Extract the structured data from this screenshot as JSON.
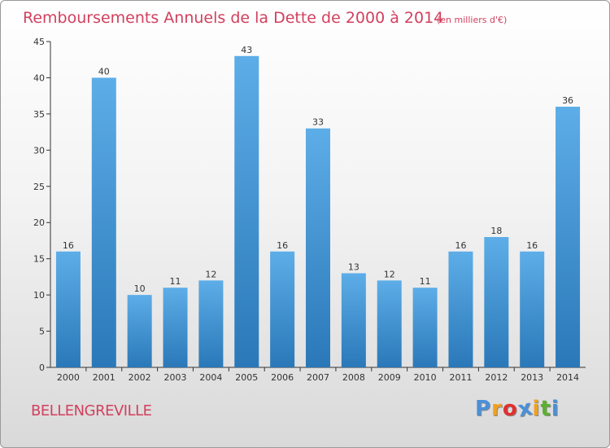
{
  "chart_data": {
    "type": "bar",
    "title": "Remboursements Annuels de la Dette de 2000 à 2014",
    "unit_note": "(en milliers d'€)",
    "categories": [
      "2000",
      "2001",
      "2002",
      "2003",
      "2004",
      "2005",
      "2006",
      "2007",
      "2008",
      "2009",
      "2010",
      "2011",
      "2012",
      "2013",
      "2014"
    ],
    "values": [
      16,
      40,
      10,
      11,
      12,
      43,
      16,
      33,
      13,
      12,
      11,
      16,
      18,
      16,
      36
    ],
    "ylim": [
      0,
      45
    ],
    "yticks": [
      0,
      5,
      10,
      15,
      20,
      25,
      30,
      35,
      40,
      45
    ],
    "grid": false,
    "bar_color_light": "#5dade8",
    "bar_color_dark": "#2a78b8"
  },
  "footer": {
    "commune": "BELLENGREVILLE",
    "logo_text": "Proxiti",
    "logo_colors": [
      "#4a90d9",
      "#f0a020",
      "#e03030",
      "#4a90d9",
      "#f0a020",
      "#5cb030",
      "#4a90d9"
    ]
  },
  "colors": {
    "title": "#d2405e",
    "axis": "#333333"
  }
}
